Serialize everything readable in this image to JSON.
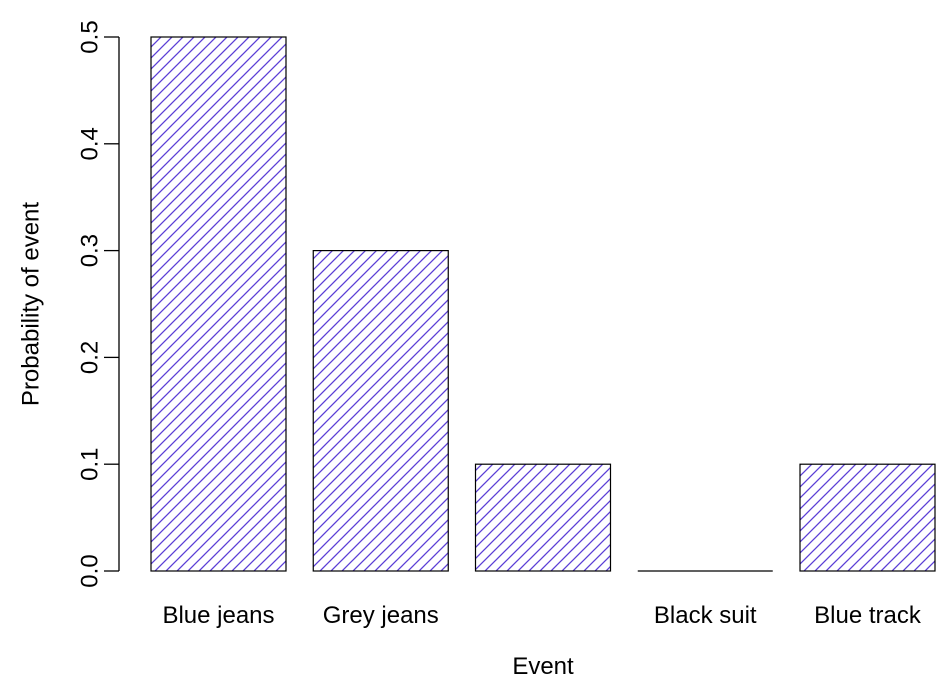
{
  "chart_data": {
    "type": "bar",
    "title": "",
    "xlabel": "Event",
    "ylabel": "Probability of event",
    "categories": [
      "Blue jeans",
      "Grey jeans",
      "",
      "Black suit",
      "Blue track"
    ],
    "values": [
      0.5,
      0.3,
      0.1,
      0.0,
      0.1
    ],
    "ylim": [
      0,
      0.5
    ],
    "yticks": [
      0.0,
      0.1,
      0.2,
      0.3,
      0.4,
      0.5
    ],
    "ytick_labels": [
      "0.0",
      "0.1",
      "0.2",
      "0.3",
      "0.4",
      "0.5"
    ],
    "grid": false,
    "legend": "none",
    "bar_fill": "hatched",
    "colors": {
      "hatch": "#5b3fd6",
      "bar_border": "#000000",
      "axis": "#000000",
      "background": "#ffffff"
    }
  }
}
